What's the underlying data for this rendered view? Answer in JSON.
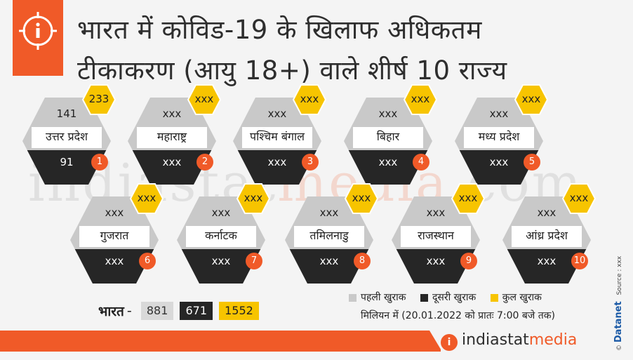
{
  "title_line1": "भारत में कोविड-19 के खिलाफ अधिकतम",
  "title_line2": "टीकाकरण (आयु 18+) वाले शीर्ष 10 राज्य",
  "watermark": {
    "part1": "indiastat",
    "part2": "media",
    "part3": ".com"
  },
  "colors": {
    "first_dose": "#c9c9c9",
    "second_dose": "#262626",
    "total": "#f7c400",
    "accent": "#f05a28"
  },
  "chart_data": {
    "type": "table",
    "states": [
      {
        "rank": "1",
        "name": "उत्तर प्रदेश",
        "first_dose": "141",
        "second_dose": "91",
        "total": "233"
      },
      {
        "rank": "2",
        "name": "महाराष्ट्र",
        "first_dose": "xxx",
        "second_dose": "xxx",
        "total": "xxx"
      },
      {
        "rank": "3",
        "name": "पश्चिम बंगाल",
        "first_dose": "xxx",
        "second_dose": "xxx",
        "total": "xxx"
      },
      {
        "rank": "4",
        "name": "बिहार",
        "first_dose": "xxx",
        "second_dose": "xxx",
        "total": "xxx"
      },
      {
        "rank": "5",
        "name": "मध्य प्रदेश",
        "first_dose": "xxx",
        "second_dose": "xxx",
        "total": "xxx"
      },
      {
        "rank": "6",
        "name": "गुजरात",
        "first_dose": "xxx",
        "second_dose": "xxx",
        "total": "xxx"
      },
      {
        "rank": "7",
        "name": "कर्नाटक",
        "first_dose": "xxx",
        "second_dose": "xxx",
        "total": "xxx"
      },
      {
        "rank": "8",
        "name": "तमिलनाडु",
        "first_dose": "xxx",
        "second_dose": "xxx",
        "total": "xxx"
      },
      {
        "rank": "9",
        "name": "राजस्थान",
        "first_dose": "xxx",
        "second_dose": "xxx",
        "total": "xxx"
      },
      {
        "rank": "10",
        "name": "आंध्र प्रदेश",
        "first_dose": "xxx",
        "second_dose": "xxx",
        "total": "xxx"
      }
    ],
    "india": {
      "label": "भारत",
      "dash": "-",
      "first_dose": "881",
      "second_dose": "671",
      "total": "1552"
    },
    "legend": [
      "पहली खुराक",
      "दूसरी खुराक",
      "कुल खुराक"
    ],
    "note": "मिलियन में (20.01.2022 को प्रातः 7:00 बजे तक)"
  },
  "footer": {
    "brand_main": "indiastat",
    "brand_accent": "media",
    "logo_glyph": "i"
  },
  "credit": {
    "copyright": "©",
    "publisher": "Datanet",
    "source": "Source : xxx"
  }
}
